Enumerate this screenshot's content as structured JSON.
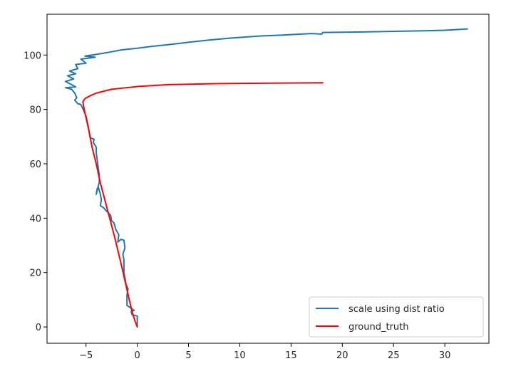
{
  "chart_data": {
    "type": "line",
    "title": "",
    "xlabel": "",
    "ylabel": "",
    "xlim": [
      -8.8,
      34.3
    ],
    "ylim": [
      -6,
      115
    ],
    "x_ticks": [
      -5,
      0,
      5,
      10,
      15,
      20,
      25,
      30
    ],
    "y_ticks": [
      0,
      20,
      40,
      60,
      80,
      100
    ],
    "x_tick_labels": [
      "−5",
      "0",
      "5",
      "10",
      "15",
      "20",
      "25",
      "30"
    ],
    "y_tick_labels": [
      "0",
      "20",
      "40",
      "60",
      "80",
      "100"
    ],
    "grid": false,
    "legend": "lower-right",
    "series": [
      {
        "name": "scale using dist ratio",
        "color": "#1f77b4",
        "points": [
          [
            0.0,
            0.5
          ],
          [
            0.0,
            4.0
          ],
          [
            -0.5,
            4.5
          ],
          [
            -0.6,
            5.6
          ],
          [
            -0.3,
            6.1
          ],
          [
            -0.8,
            7.4
          ],
          [
            -1.0,
            7.9
          ],
          [
            -1.0,
            11.8
          ],
          [
            -0.9,
            14.0
          ],
          [
            -1.1,
            15.8
          ],
          [
            -1.2,
            18.0
          ],
          [
            -1.3,
            20.0
          ],
          [
            -1.3,
            22.3
          ],
          [
            -1.3,
            24.7
          ],
          [
            -1.4,
            26.7
          ],
          [
            -1.2,
            29.1
          ],
          [
            -1.3,
            31.9
          ],
          [
            -1.6,
            32.2
          ],
          [
            -1.9,
            31.2
          ],
          [
            -1.8,
            33.9
          ],
          [
            -2.1,
            35.9
          ],
          [
            -2.2,
            37.4
          ],
          [
            -2.3,
            38.4
          ],
          [
            -2.5,
            39.0
          ],
          [
            -2.6,
            41.1
          ],
          [
            -3.0,
            42.6
          ],
          [
            -3.3,
            43.9
          ],
          [
            -3.6,
            44.6
          ],
          [
            -3.5,
            46.8
          ],
          [
            -3.6,
            48.8
          ],
          [
            -3.8,
            51.4
          ],
          [
            -3.9,
            51.0
          ],
          [
            -4.0,
            48.8
          ],
          [
            -3.7,
            53.3
          ],
          [
            -3.7,
            55.8
          ],
          [
            -3.8,
            58.3
          ],
          [
            -3.9,
            61.3
          ],
          [
            -4.0,
            64.0
          ],
          [
            -4.0,
            66.1
          ],
          [
            -4.3,
            67.9
          ],
          [
            -4.2,
            69.0
          ],
          [
            -4.6,
            69.6
          ],
          [
            -4.8,
            74.2
          ],
          [
            -5.0,
            77.6
          ],
          [
            -5.3,
            80.2
          ],
          [
            -5.5,
            81.8
          ],
          [
            -5.8,
            82.1
          ],
          [
            -6.1,
            83.4
          ],
          [
            -5.9,
            84.3
          ],
          [
            -6.1,
            86.0
          ],
          [
            -6.4,
            87.4
          ],
          [
            -7.0,
            88.0
          ],
          [
            -6.0,
            88.3
          ],
          [
            -7.0,
            90.3
          ],
          [
            -6.2,
            91.2
          ],
          [
            -6.8,
            92.4
          ],
          [
            -6.0,
            93.1
          ],
          [
            -6.6,
            94.1
          ],
          [
            -5.8,
            95.0
          ],
          [
            -6.0,
            96.5
          ],
          [
            -5.0,
            97.0
          ],
          [
            -5.5,
            98.5
          ],
          [
            -4.1,
            99.2
          ],
          [
            -5.1,
            99.6
          ],
          [
            -3.4,
            100.6
          ],
          [
            -2.5,
            101.2
          ],
          [
            -1.5,
            101.9
          ],
          [
            0.0,
            102.5
          ],
          [
            1.5,
            103.2
          ],
          [
            3.0,
            103.8
          ],
          [
            5.0,
            104.7
          ],
          [
            7.0,
            105.5
          ],
          [
            9.0,
            106.2
          ],
          [
            12.0,
            107.0
          ],
          [
            14.0,
            107.3
          ],
          [
            16.0,
            107.7
          ],
          [
            17.0,
            107.9
          ],
          [
            18.0,
            107.7
          ],
          [
            18.1,
            108.3
          ],
          [
            20.0,
            108.4
          ],
          [
            22.0,
            108.5
          ],
          [
            25.0,
            108.7
          ],
          [
            28.0,
            108.9
          ],
          [
            30.0,
            109.1
          ],
          [
            32.2,
            109.6
          ]
        ]
      },
      {
        "name": "ground_truth",
        "color": "#ff0000",
        "points": [
          [
            0.0,
            0.0
          ],
          [
            -0.2,
            2.0
          ],
          [
            -0.5,
            5.5
          ],
          [
            -0.9,
            12.0
          ],
          [
            -1.5,
            22.0
          ],
          [
            -2.2,
            33.0
          ],
          [
            -2.9,
            43.0
          ],
          [
            -3.6,
            53.0
          ],
          [
            -4.0,
            60.0
          ],
          [
            -4.4,
            66.0
          ],
          [
            -4.7,
            72.0
          ],
          [
            -5.0,
            77.0
          ],
          [
            -5.2,
            80.5
          ],
          [
            -5.3,
            82.8
          ],
          [
            -5.1,
            84.0
          ],
          [
            -4.6,
            85.0
          ],
          [
            -4.0,
            86.0
          ],
          [
            -2.5,
            87.4
          ],
          [
            0.0,
            88.4
          ],
          [
            3.0,
            89.1
          ],
          [
            8.0,
            89.5
          ],
          [
            18.1,
            89.8
          ]
        ]
      }
    ]
  }
}
